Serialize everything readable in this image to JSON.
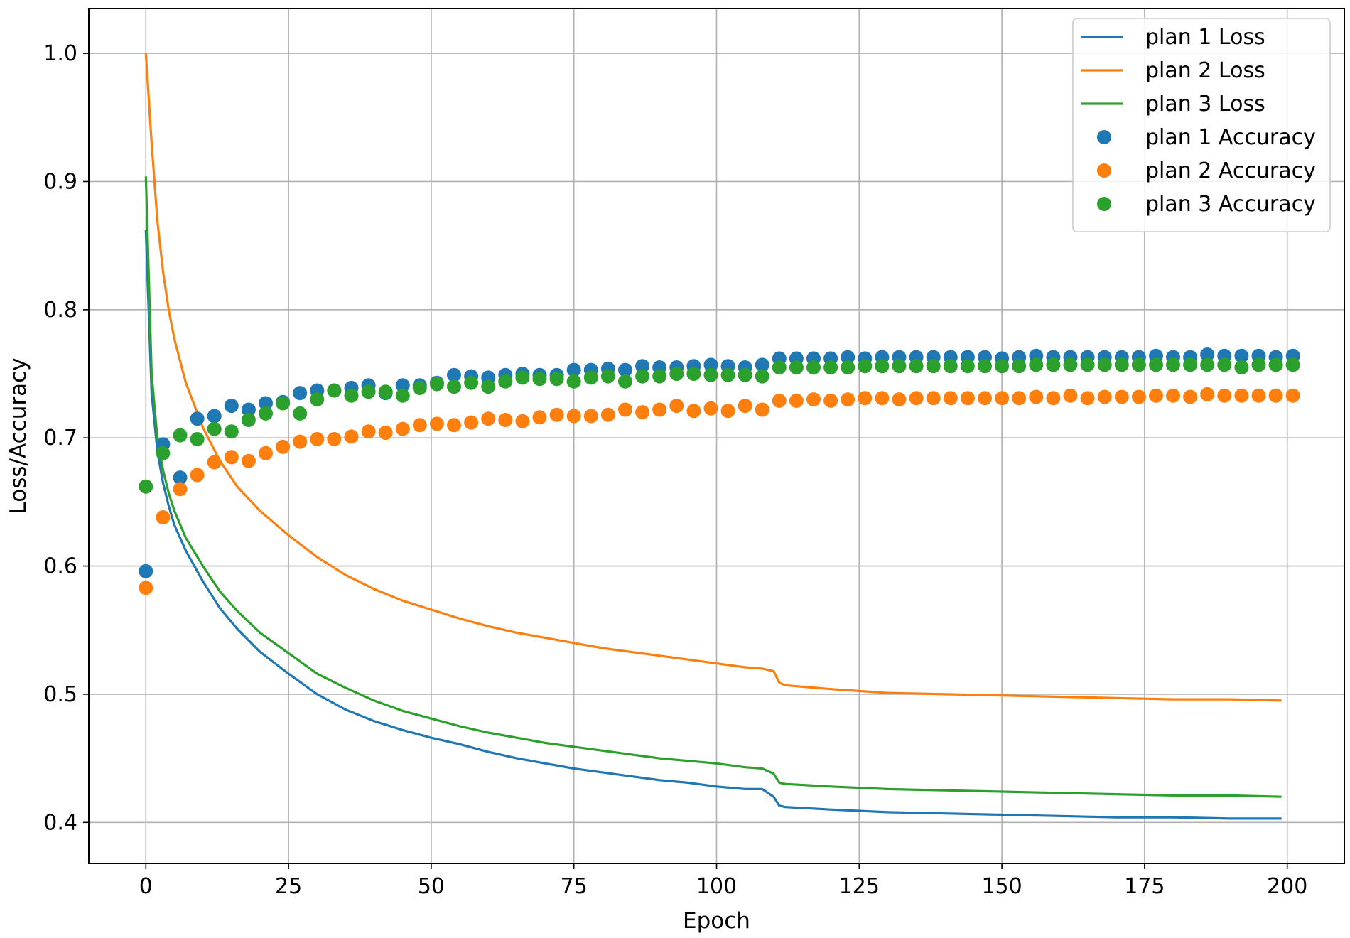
{
  "chart_data": {
    "type": "line",
    "title": "",
    "xlabel": "Epoch",
    "ylabel": "Loss/Accuracy",
    "xlim": [
      -10,
      210
    ],
    "ylim": [
      0.368,
      1.035
    ],
    "xticks": [
      0,
      25,
      50,
      75,
      100,
      125,
      150,
      175,
      200
    ],
    "yticks": [
      0.4,
      0.5,
      0.6,
      0.7,
      0.8,
      0.9,
      1.0
    ],
    "xtick_labels": [
      "0",
      "25",
      "50",
      "75",
      "100",
      "125",
      "150",
      "175",
      "200"
    ],
    "ytick_labels": [
      "0.4",
      "0.5",
      "0.6",
      "0.7",
      "0.8",
      "0.9",
      "1.0"
    ],
    "grid": true,
    "legend": {
      "position": "top-right",
      "entries": [
        {
          "label": "plan 1 Loss",
          "marker": "line",
          "color": "#1f77b4"
        },
        {
          "label": "plan 2 Loss",
          "marker": "line",
          "color": "#ff7f0e"
        },
        {
          "label": "plan 3 Loss",
          "marker": "line",
          "color": "#2ca02c"
        },
        {
          "label": "plan 1 Accuracy",
          "marker": "dot",
          "color": "#1f77b4"
        },
        {
          "label": "plan 2 Accuracy",
          "marker": "dot",
          "color": "#ff7f0e"
        },
        {
          "label": "plan 3 Accuracy",
          "marker": "dot",
          "color": "#2ca02c"
        }
      ]
    },
    "series": [
      {
        "name": "plan 1 Loss",
        "kind": "line",
        "color": "#1f77b4",
        "x": [
          0,
          1,
          2,
          3,
          4,
          5,
          7,
          10,
          13,
          16,
          20,
          25,
          30,
          35,
          40,
          45,
          50,
          55,
          60,
          65,
          70,
          75,
          80,
          85,
          90,
          95,
          100,
          105,
          108,
          110,
          111,
          112,
          120,
          130,
          140,
          150,
          160,
          170,
          180,
          190,
          199
        ],
        "y": [
          0.862,
          0.735,
          0.69,
          0.665,
          0.647,
          0.632,
          0.612,
          0.588,
          0.567,
          0.551,
          0.533,
          0.516,
          0.5,
          0.488,
          0.479,
          0.472,
          0.466,
          0.461,
          0.455,
          0.45,
          0.446,
          0.442,
          0.439,
          0.436,
          0.433,
          0.431,
          0.428,
          0.426,
          0.426,
          0.42,
          0.413,
          0.412,
          0.41,
          0.408,
          0.407,
          0.406,
          0.405,
          0.404,
          0.404,
          0.403,
          0.403
        ]
      },
      {
        "name": "plan 2 Loss",
        "kind": "line",
        "color": "#ff7f0e",
        "x": [
          0,
          1,
          2,
          3,
          4,
          5,
          7,
          10,
          13,
          16,
          20,
          25,
          30,
          35,
          40,
          45,
          50,
          55,
          60,
          65,
          70,
          75,
          80,
          85,
          90,
          95,
          100,
          105,
          108,
          110,
          111,
          112,
          120,
          130,
          140,
          150,
          160,
          170,
          180,
          190,
          199
        ],
        "y": [
          1.0,
          0.93,
          0.87,
          0.83,
          0.8,
          0.777,
          0.743,
          0.708,
          0.682,
          0.662,
          0.643,
          0.624,
          0.607,
          0.593,
          0.582,
          0.573,
          0.566,
          0.559,
          0.553,
          0.548,
          0.544,
          0.54,
          0.536,
          0.533,
          0.53,
          0.527,
          0.524,
          0.521,
          0.52,
          0.518,
          0.509,
          0.507,
          0.504,
          0.501,
          0.5,
          0.499,
          0.498,
          0.497,
          0.496,
          0.496,
          0.495
        ]
      },
      {
        "name": "plan 3 Loss",
        "kind": "line",
        "color": "#2ca02c",
        "x": [
          0,
          1,
          2,
          3,
          4,
          5,
          7,
          10,
          13,
          16,
          20,
          25,
          30,
          35,
          40,
          45,
          50,
          55,
          60,
          65,
          70,
          75,
          80,
          85,
          90,
          95,
          100,
          105,
          108,
          110,
          111,
          112,
          120,
          130,
          140,
          150,
          160,
          170,
          180,
          190,
          199
        ],
        "y": [
          0.904,
          0.75,
          0.7,
          0.675,
          0.657,
          0.643,
          0.622,
          0.6,
          0.58,
          0.565,
          0.548,
          0.532,
          0.516,
          0.505,
          0.495,
          0.487,
          0.481,
          0.475,
          0.47,
          0.466,
          0.462,
          0.459,
          0.456,
          0.453,
          0.45,
          0.448,
          0.446,
          0.443,
          0.442,
          0.438,
          0.431,
          0.43,
          0.428,
          0.426,
          0.425,
          0.424,
          0.423,
          0.422,
          0.421,
          0.421,
          0.42
        ]
      },
      {
        "name": "plan 1 Accuracy",
        "kind": "scatter",
        "color": "#1f77b4",
        "x": [
          0,
          3,
          6,
          9,
          12,
          15,
          18,
          21,
          24,
          27,
          30,
          33,
          36,
          39,
          42,
          45,
          48,
          51,
          54,
          57,
          60,
          63,
          66,
          69,
          72,
          75,
          78,
          81,
          84,
          87,
          90,
          93,
          96,
          99,
          102,
          105,
          108,
          111,
          114,
          117,
          120,
          123,
          126,
          129,
          132,
          135,
          138,
          141,
          144,
          147,
          150,
          153,
          156,
          159,
          162,
          165,
          168,
          171,
          174,
          177,
          180,
          183,
          186,
          189,
          192,
          195,
          198,
          201
        ],
        "y": [
          0.596,
          0.695,
          0.669,
          0.715,
          0.717,
          0.725,
          0.722,
          0.727,
          0.728,
          0.735,
          0.737,
          0.737,
          0.739,
          0.741,
          0.735,
          0.741,
          0.741,
          0.743,
          0.749,
          0.748,
          0.747,
          0.749,
          0.75,
          0.749,
          0.749,
          0.753,
          0.753,
          0.754,
          0.753,
          0.756,
          0.755,
          0.755,
          0.756,
          0.757,
          0.756,
          0.755,
          0.757,
          0.762,
          0.762,
          0.762,
          0.762,
          0.763,
          0.762,
          0.763,
          0.763,
          0.763,
          0.763,
          0.763,
          0.763,
          0.763,
          0.762,
          0.763,
          0.764,
          0.763,
          0.763,
          0.763,
          0.763,
          0.763,
          0.763,
          0.764,
          0.763,
          0.763,
          0.765,
          0.764,
          0.764,
          0.764,
          0.763,
          0.764
        ]
      },
      {
        "name": "plan 2 Accuracy",
        "kind": "scatter",
        "color": "#ff7f0e",
        "x": [
          0,
          3,
          6,
          9,
          12,
          15,
          18,
          21,
          24,
          27,
          30,
          33,
          36,
          39,
          42,
          45,
          48,
          51,
          54,
          57,
          60,
          63,
          66,
          69,
          72,
          75,
          78,
          81,
          84,
          87,
          90,
          93,
          96,
          99,
          102,
          105,
          108,
          111,
          114,
          117,
          120,
          123,
          126,
          129,
          132,
          135,
          138,
          141,
          144,
          147,
          150,
          153,
          156,
          159,
          162,
          165,
          168,
          171,
          174,
          177,
          180,
          183,
          186,
          189,
          192,
          195,
          198,
          201
        ],
        "y": [
          0.583,
          0.638,
          0.66,
          0.671,
          0.681,
          0.685,
          0.682,
          0.688,
          0.693,
          0.697,
          0.699,
          0.699,
          0.701,
          0.705,
          0.704,
          0.707,
          0.71,
          0.711,
          0.71,
          0.712,
          0.715,
          0.714,
          0.713,
          0.716,
          0.718,
          0.717,
          0.717,
          0.718,
          0.722,
          0.72,
          0.722,
          0.725,
          0.721,
          0.723,
          0.721,
          0.725,
          0.722,
          0.729,
          0.729,
          0.73,
          0.729,
          0.73,
          0.731,
          0.731,
          0.73,
          0.731,
          0.731,
          0.731,
          0.731,
          0.731,
          0.731,
          0.731,
          0.732,
          0.731,
          0.733,
          0.731,
          0.732,
          0.732,
          0.732,
          0.733,
          0.733,
          0.732,
          0.734,
          0.733,
          0.733,
          0.733,
          0.733,
          0.733
        ]
      },
      {
        "name": "plan 3 Accuracy",
        "kind": "scatter",
        "color": "#2ca02c",
        "x": [
          0,
          3,
          6,
          9,
          12,
          15,
          18,
          21,
          24,
          27,
          30,
          33,
          36,
          39,
          42,
          45,
          48,
          51,
          54,
          57,
          60,
          63,
          66,
          69,
          72,
          75,
          78,
          81,
          84,
          87,
          90,
          93,
          96,
          99,
          102,
          105,
          108,
          111,
          114,
          117,
          120,
          123,
          126,
          129,
          132,
          135,
          138,
          141,
          144,
          147,
          150,
          153,
          156,
          159,
          162,
          165,
          168,
          171,
          174,
          177,
          180,
          183,
          186,
          189,
          192,
          195,
          198,
          201
        ],
        "y": [
          0.662,
          0.688,
          0.702,
          0.699,
          0.707,
          0.705,
          0.714,
          0.719,
          0.727,
          0.719,
          0.73,
          0.737,
          0.733,
          0.736,
          0.736,
          0.733,
          0.739,
          0.742,
          0.74,
          0.743,
          0.74,
          0.744,
          0.747,
          0.746,
          0.746,
          0.744,
          0.747,
          0.748,
          0.744,
          0.748,
          0.748,
          0.75,
          0.75,
          0.749,
          0.749,
          0.749,
          0.748,
          0.755,
          0.755,
          0.755,
          0.755,
          0.755,
          0.756,
          0.756,
          0.756,
          0.756,
          0.756,
          0.756,
          0.756,
          0.756,
          0.756,
          0.756,
          0.757,
          0.757,
          0.757,
          0.757,
          0.757,
          0.757,
          0.757,
          0.757,
          0.757,
          0.757,
          0.757,
          0.757,
          0.755,
          0.757,
          0.757,
          0.757
        ]
      }
    ]
  }
}
